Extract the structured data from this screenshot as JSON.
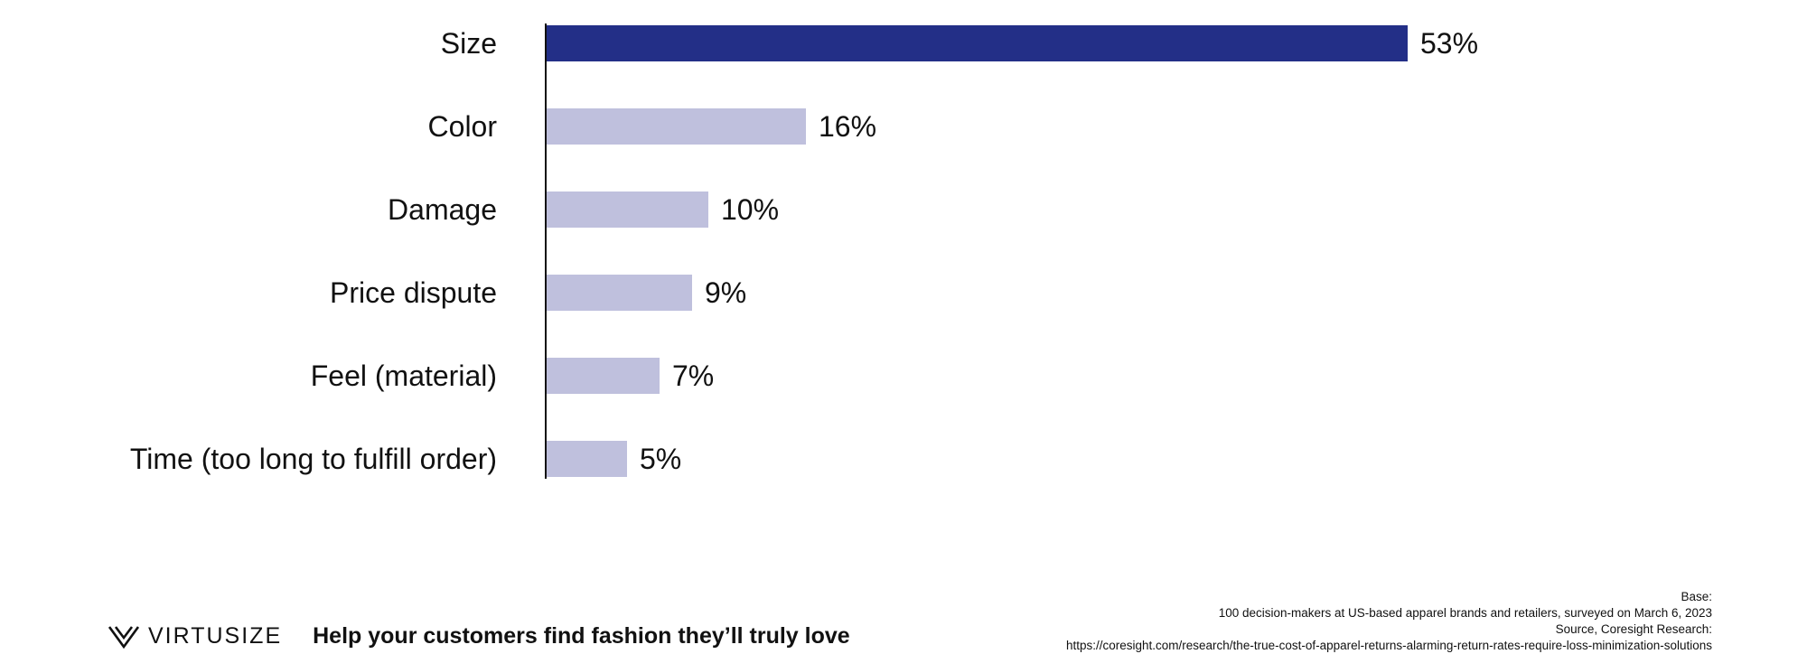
{
  "chart_data": {
    "type": "bar",
    "orientation": "horizontal",
    "categories": [
      "Size",
      "Color",
      "Damage",
      "Price dispute",
      "Feel (material)",
      "Time (too long to fulfill order)"
    ],
    "values": [
      53,
      16,
      10,
      9,
      7,
      5
    ],
    "value_suffix": "%",
    "highlight_index": 0,
    "colors": {
      "highlight": "#232F87",
      "default": "#BFC0DD",
      "axis": "#111111"
    },
    "xlim": [
      0,
      60
    ],
    "grid": false,
    "legend": "none"
  },
  "footer": {
    "brand": "VIRTUSIZE",
    "brand_icon": "virtusize-v-logo-icon",
    "tagline": "Help your customers find fashion they’ll truly love",
    "base_label": "Base:",
    "base_text": "100 decision-makers at US-based apparel brands and retailers, surveyed on March 6, 2023",
    "source_label": "Source, Coresight Research:",
    "source_url": "https://coresight.com/research/the-true-cost-of-apparel-returns-alarming-return-rates-require-loss-minimization-solutions"
  }
}
